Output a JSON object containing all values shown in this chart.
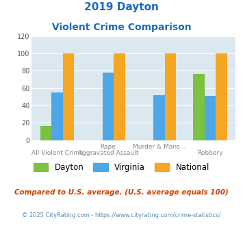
{
  "title_line1": "2019 Dayton",
  "title_line2": "Violent Crime Comparison",
  "cat_labels_top": [
    "",
    "Rape",
    "Murder & Mans...",
    ""
  ],
  "cat_labels_bot": [
    "All Violent Crime",
    "Aggravated Assault",
    "",
    "Robbery"
  ],
  "dayton": [
    16,
    null,
    null,
    76
  ],
  "virginia": [
    55,
    78,
    52,
    51
  ],
  "national": [
    100,
    100,
    100,
    100
  ],
  "bar_colors": {
    "dayton": "#7bc142",
    "virginia": "#4da6e8",
    "national": "#f5a623"
  },
  "ylim": [
    0,
    120
  ],
  "yticks": [
    0,
    20,
    40,
    60,
    80,
    100,
    120
  ],
  "legend_labels": [
    "Dayton",
    "Virginia",
    "National"
  ],
  "footnote1": "Compared to U.S. average. (U.S. average equals 100)",
  "footnote2": "© 2025 CityRating.com - https://www.cityrating.com/crime-statistics/",
  "bg_color": "#dce8ef",
  "title_color": "#1a6bbd",
  "footnote1_color": "#cc4400",
  "footnote2_color": "#5588aa"
}
